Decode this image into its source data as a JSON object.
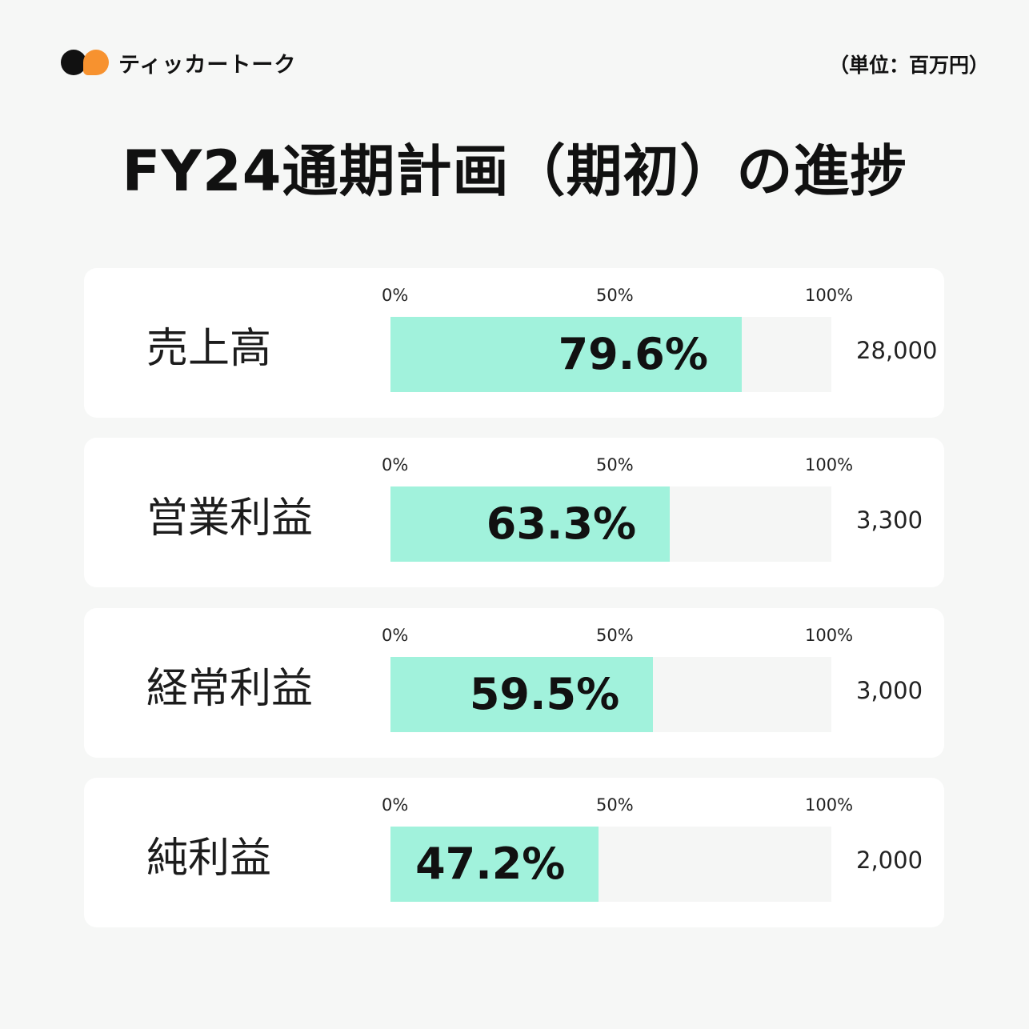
{
  "brand": {
    "name": "ティッカートーク"
  },
  "unit_note": "（単位：百万円）",
  "title": "FY24通期計画（期初）の進捗",
  "axis_ticks": [
    "0%",
    "50%",
    "100%"
  ],
  "chart_data": {
    "type": "bar",
    "orientation": "horizontal",
    "categories": [
      "売上高",
      "営業利益",
      "経常利益",
      "純利益"
    ],
    "values": [
      79.6,
      63.3,
      59.5,
      47.2
    ],
    "value_labels": [
      "79.6%",
      "63.3%",
      "59.5%",
      "47.2%"
    ],
    "plan_amounts": [
      "28,000",
      "3,300",
      "3,000",
      "2,000"
    ],
    "xlim": [
      0,
      100
    ],
    "unit": "百万円",
    "colors": {
      "fill": "#a1f2dc",
      "track": "#f5f6f5"
    }
  }
}
